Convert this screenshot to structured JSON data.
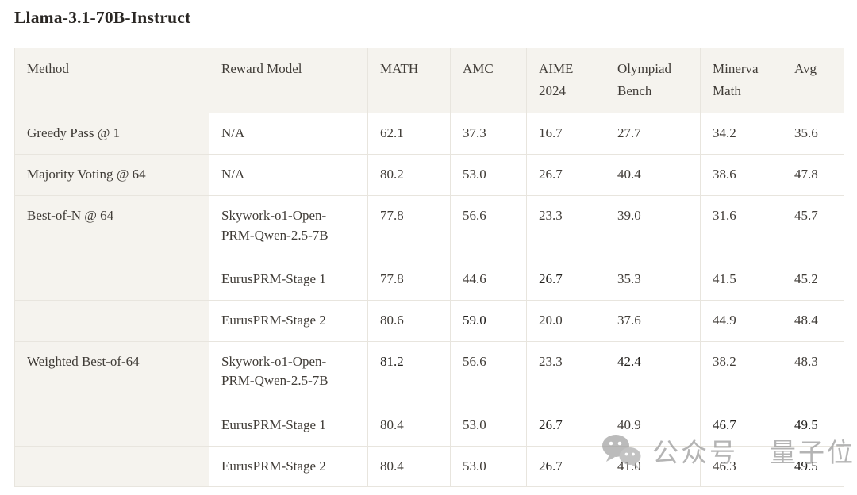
{
  "page": {
    "title": "Llama-3.1-70B-Instruct"
  },
  "colors": {
    "header_and_method_bg": "#f5f3ee",
    "cell_bg": "#ffffff",
    "border": "#e8e5de",
    "text": "#403c37",
    "bold_text": "#211f1c",
    "watermark_gray": "#929292"
  },
  "watermark": {
    "icon": "wechat-icon",
    "label_1": "公众号",
    "label_2": "量子位"
  },
  "table": {
    "columns": [
      "Method",
      "Reward Model",
      "MATH",
      "AMC",
      "AIME 2024",
      "Olympiad Bench",
      "Minerva Math",
      "Avg"
    ],
    "rows": [
      {
        "method": "Greedy Pass @ 1",
        "reward_model": "N/A",
        "values": [
          "62.1",
          "37.3",
          "16.7",
          "27.7",
          "34.2",
          "35.6"
        ],
        "bold": [
          false,
          false,
          false,
          false,
          false,
          false
        ]
      },
      {
        "method": "Majority Voting @ 64",
        "reward_model": "N/A",
        "values": [
          "80.2",
          "53.0",
          "26.7",
          "40.4",
          "38.6",
          "47.8"
        ],
        "bold": [
          false,
          false,
          false,
          false,
          false,
          false
        ]
      },
      {
        "method": "Best-of-N @ 64",
        "reward_model": "Skywork-o1-Open-PRM-Qwen-2.5-7B",
        "values": [
          "77.8",
          "56.6",
          "23.3",
          "39.0",
          "31.6",
          "45.7"
        ],
        "bold": [
          false,
          false,
          false,
          false,
          false,
          false
        ]
      },
      {
        "method": "",
        "reward_model": "EurusPRM-Stage 1",
        "values": [
          "77.8",
          "44.6",
          "26.7",
          "35.3",
          "41.5",
          "45.2"
        ],
        "bold": [
          false,
          false,
          true,
          false,
          false,
          false
        ]
      },
      {
        "method": "",
        "reward_model": "EurusPRM-Stage 2",
        "values": [
          "80.6",
          "59.0",
          "20.0",
          "37.6",
          "44.9",
          "48.4"
        ],
        "bold": [
          false,
          true,
          false,
          false,
          false,
          false
        ]
      },
      {
        "method": "Weighted Best-of-64",
        "reward_model": "Skywork-o1-Open-PRM-Qwen-2.5-7B",
        "values": [
          "81.2",
          "56.6",
          "23.3",
          "42.4",
          "38.2",
          "48.3"
        ],
        "bold": [
          true,
          false,
          false,
          true,
          false,
          false
        ]
      },
      {
        "method": "",
        "reward_model": "EurusPRM-Stage 1",
        "values": [
          "80.4",
          "53.0",
          "26.7",
          "40.9",
          "46.7",
          "49.5"
        ],
        "bold": [
          false,
          false,
          true,
          false,
          true,
          true
        ]
      },
      {
        "method": "",
        "reward_model": "EurusPRM-Stage 2",
        "values": [
          "80.4",
          "53.0",
          "26.7",
          "41.0",
          "46.3",
          "49.5"
        ],
        "bold": [
          false,
          false,
          true,
          false,
          false,
          true
        ]
      }
    ]
  }
}
